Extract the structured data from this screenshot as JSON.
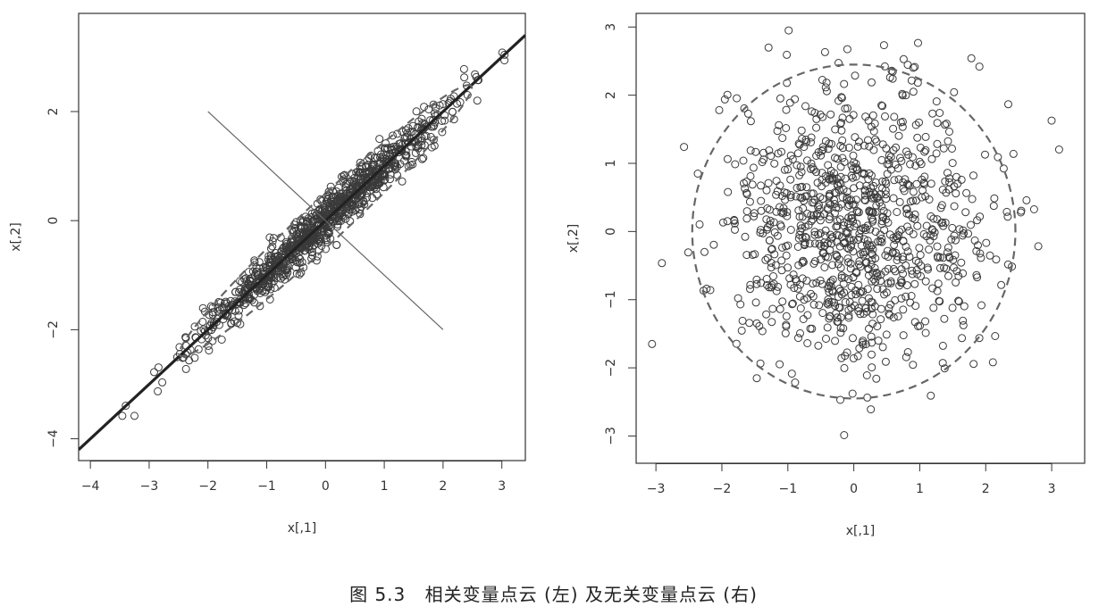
{
  "caption": {
    "prefix": "图",
    "number": "5.3",
    "text": "相关变量点云 (左) 及无关变量点云 (右)"
  },
  "chart_data": [
    {
      "type": "scatter",
      "title": "",
      "xlabel": "x[,1]",
      "ylabel": "x[,2]",
      "xlim": [
        -4.2,
        3.4
      ],
      "ylim": [
        -4.4,
        3.8
      ],
      "xticks": [
        -4,
        -3,
        -2,
        -1,
        0,
        1,
        2,
        3
      ],
      "yticks": [
        -4,
        -2,
        0,
        2
      ],
      "grid": false,
      "n_points": 1000,
      "correlation": 0.98,
      "lines": [
        {
          "label": "first principal axis",
          "style": "solid thick",
          "from": [
            -4.2,
            -4.2
          ],
          "to": [
            3.4,
            3.4
          ]
        },
        {
          "label": "second principal axis",
          "style": "solid thin",
          "from": [
            -2,
            2
          ],
          "to": [
            2,
            -2
          ]
        },
        {
          "label": "density ellipse",
          "style": "dashed",
          "center": [
            0,
            0
          ],
          "angle_deg": 45,
          "semi_axes": [
            3.5,
            0.36
          ]
        }
      ]
    },
    {
      "type": "scatter",
      "title": "",
      "xlabel": "x[,1]",
      "ylabel": "x[,2]",
      "xlim": [
        -3.3,
        3.5
      ],
      "ylim": [
        -3.4,
        3.2
      ],
      "xticks": [
        -3,
        -2,
        -1,
        0,
        1,
        2,
        3
      ],
      "yticks": [
        -3,
        -2,
        -1,
        0,
        1,
        2,
        3
      ],
      "grid": false,
      "n_points": 1000,
      "correlation": 0,
      "lines": [
        {
          "label": "density circle",
          "style": "dashed",
          "center": [
            0,
            0
          ],
          "radius": 2.45
        }
      ]
    }
  ]
}
